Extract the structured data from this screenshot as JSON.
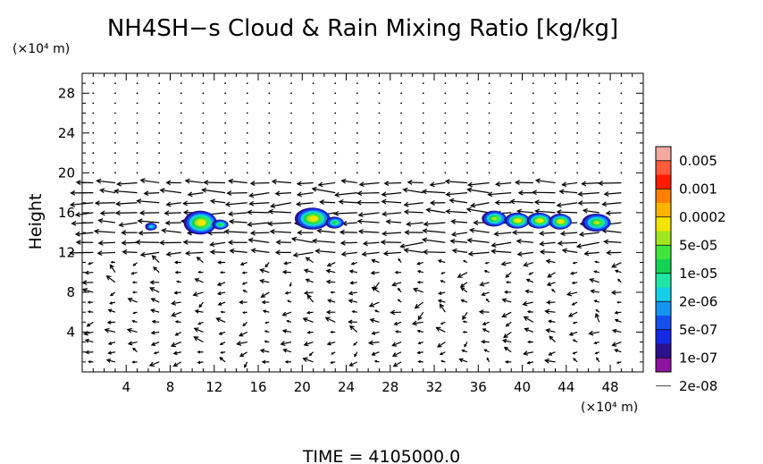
{
  "chart_data": {
    "type": "heatmap",
    "title": "NH4SH−s Cloud & Rain Mixing Ratio [kg/kg]",
    "ylabel": "Height",
    "y_unit": "(×10⁴ m)",
    "x_unit": "(×10⁴ m)",
    "xlim": [
      0,
      51
    ],
    "ylim": [
      0,
      30
    ],
    "x_ticks": [
      "4",
      "8",
      "12",
      "16",
      "20",
      "24",
      "28",
      "32",
      "36",
      "40",
      "44",
      "48"
    ],
    "y_ticks": [
      "4",
      "8",
      "12",
      "16",
      "20",
      "24",
      "28"
    ],
    "x_tick_values": [
      4,
      8,
      12,
      16,
      20,
      24,
      28,
      32,
      36,
      40,
      44,
      48
    ],
    "y_tick_values": [
      4,
      8,
      12,
      16,
      20,
      24,
      28
    ],
    "colorbar": {
      "labels": [
        "0.005",
        "0.001",
        "0.0002",
        "5e-05",
        "1e-05",
        "2e-06",
        "5e-07",
        "1e-07",
        "2e-08"
      ],
      "colors": [
        "#f3a8a0",
        "#ff5a3a",
        "#ff1a00",
        "#ff7f00",
        "#ffb400",
        "#f2e600",
        "#a0e61e",
        "#3ee63c",
        "#13d255",
        "#1ee6a5",
        "#15cfe8",
        "#1496f0",
        "#1450f0",
        "#1428e6",
        "#28118c",
        "#8c14a0"
      ]
    },
    "cloud_cells": [
      {
        "x": 10.8,
        "y": 15.0,
        "rx": 1.5,
        "ry": 1.2,
        "peak": "5e-05"
      },
      {
        "x": 12.6,
        "y": 14.8,
        "rx": 0.7,
        "ry": 0.5,
        "peak": "2e-06"
      },
      {
        "x": 6.3,
        "y": 14.6,
        "rx": 0.5,
        "ry": 0.4,
        "peak": "5e-07"
      },
      {
        "x": 21.0,
        "y": 15.4,
        "rx": 1.6,
        "ry": 1.1,
        "peak": "5e-05"
      },
      {
        "x": 23.0,
        "y": 15.0,
        "rx": 0.8,
        "ry": 0.6,
        "peak": "2e-06"
      },
      {
        "x": 37.5,
        "y": 15.4,
        "rx": 1.1,
        "ry": 0.8,
        "peak": "1e-05"
      },
      {
        "x": 39.6,
        "y": 15.2,
        "rx": 1.1,
        "ry": 0.8,
        "peak": "5e-05"
      },
      {
        "x": 41.6,
        "y": 15.2,
        "rx": 1.1,
        "ry": 0.8,
        "peak": "5e-05"
      },
      {
        "x": 43.5,
        "y": 15.1,
        "rx": 1.0,
        "ry": 0.8,
        "peak": "5e-05"
      },
      {
        "x": 46.8,
        "y": 15.0,
        "rx": 1.3,
        "ry": 0.9,
        "peak": "1e-05"
      }
    ],
    "wind_bands": [
      {
        "y": 19.0,
        "u": -1.0
      },
      {
        "y": 17.5,
        "u": -0.8
      },
      {
        "y": 16.0,
        "u": -0.9
      },
      {
        "y": 15.0,
        "u": -1.0
      },
      {
        "y": 14.0,
        "u": -1.0
      },
      {
        "y": 13.0,
        "u": -0.8
      },
      {
        "y": 12.0,
        "u": -0.9
      }
    ],
    "time_label": "TIME  =  4105000.0"
  }
}
